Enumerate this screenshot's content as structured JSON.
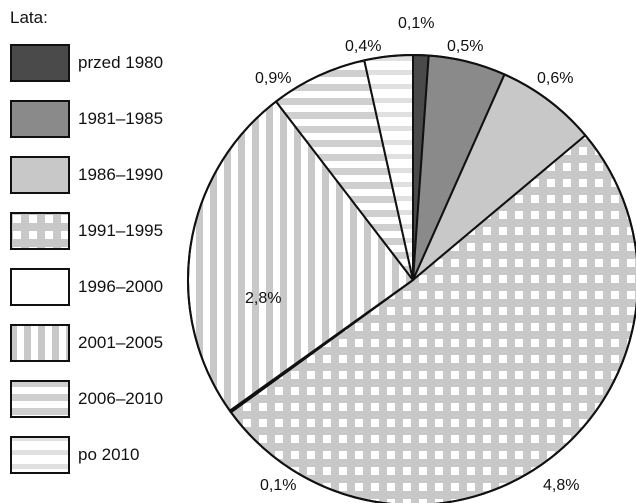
{
  "legend": {
    "title": "Lata:"
  },
  "chart_data": {
    "type": "pie",
    "start_angle_deg": 0,
    "direction": "clockwise",
    "categories": [
      "przed 1980",
      "1981–1985",
      "1986–1990",
      "1991–1995",
      "1996–2000",
      "2001–2005",
      "2006–2010",
      "po 2010"
    ],
    "values": [
      0.1,
      0.5,
      0.6,
      4.8,
      0.1,
      2.8,
      0.9,
      0.4
    ],
    "data_labels": [
      "0,1%",
      "0,5%",
      "0,6%",
      "4,8%",
      "0,1%",
      "2,8%",
      "0,9%",
      "0,4%"
    ],
    "legend_placement": "left",
    "colors": {
      "przed 1980": "#4a4a4a",
      "1981–1985": "#8a8a8a",
      "1986–1990": "#c8c8c8",
      "1991–1995": "#c8c8c8",
      "1996–2000": "#ffffff",
      "2001–2005": "#c8c8c8",
      "2006–2010": "#cfcfcf",
      "po 2010": "#e0e0e0"
    },
    "patterns": [
      "solid",
      "solid",
      "solid",
      "checker",
      "solid",
      "vertical-stripes",
      "horizontal-stripes",
      "horizontal-stripes-light"
    ]
  }
}
